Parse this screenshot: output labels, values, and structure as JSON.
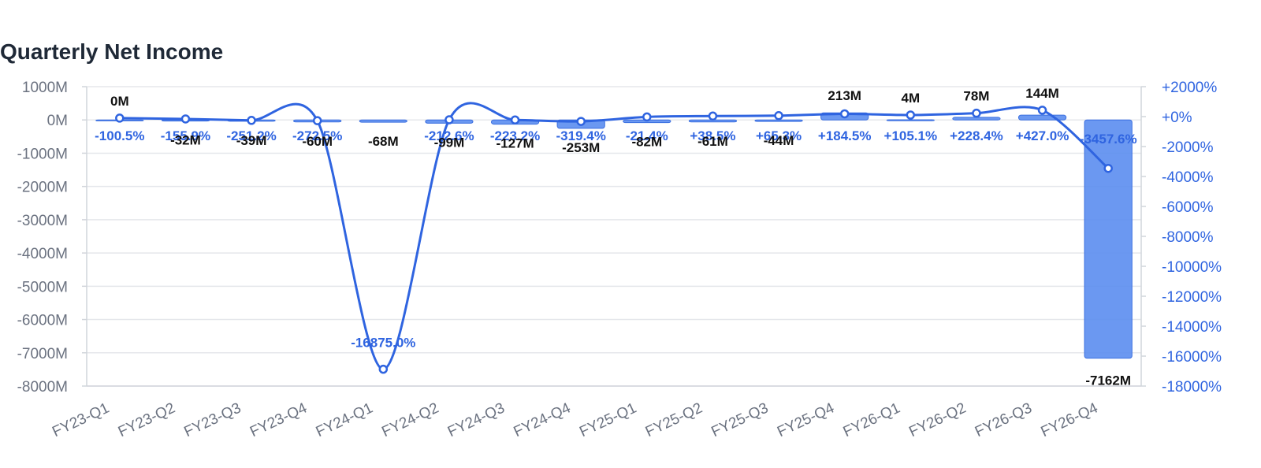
{
  "chart_data": {
    "type": "bar",
    "title": "Quarterly Net Income",
    "categories": [
      "FY23-Q1",
      "FY23-Q2",
      "FY23-Q3",
      "FY23-Q4",
      "FY24-Q1",
      "FY24-Q2",
      "FY24-Q3",
      "FY24-Q4",
      "FY25-Q1",
      "FY25-Q2",
      "FY25-Q3",
      "FY25-Q4",
      "FY26-Q1",
      "FY26-Q2",
      "FY26-Q3",
      "FY26-Q4"
    ],
    "series": [
      {
        "type": "bar",
        "axis": "left",
        "values": [
          0,
          -32,
          -39,
          -60,
          -68,
          -99,
          -127,
          -253,
          -82,
          -61,
          -44,
          213,
          4,
          78,
          144,
          -7162
        ],
        "value_labels": [
          "0M",
          "-32M",
          "-39M",
          "-60M",
          "-68M",
          "-99M",
          "-127M",
          "-253M",
          "-82M",
          "-61M",
          "-44M",
          "213M",
          "4M",
          "78M",
          "144M",
          "-7162M"
        ]
      },
      {
        "type": "line",
        "axis": "right",
        "values": [
          -100.5,
          -155.9,
          -251.2,
          -272.5,
          -16875.0,
          -212.6,
          -223.2,
          -319.4,
          -21.4,
          38.5,
          65.3,
          184.5,
          105.1,
          228.4,
          427.0,
          -3457.6
        ],
        "value_labels": [
          "-100.5%",
          "-155.9%",
          "-251.2%",
          "-272.5%",
          "-16875.0%",
          "-212.6%",
          "-223.2%",
          "-319.4%",
          "-21.4%",
          "+38.5%",
          "+65.3%",
          "+184.5%",
          "+105.1%",
          "+228.4%",
          "+427.0%",
          "-3457.6%"
        ]
      }
    ],
    "y_left": {
      "ylim": [
        -8000,
        1000
      ],
      "ticks": [
        1000,
        0,
        -1000,
        -2000,
        -3000,
        -4000,
        -5000,
        -6000,
        -7000,
        -8000
      ],
      "tick_labels": [
        "1000M",
        "0M",
        "-1000M",
        "-2000M",
        "-3000M",
        "-4000M",
        "-5000M",
        "-6000M",
        "-7000M",
        "-8000M"
      ]
    },
    "y_right": {
      "ylim": [
        -18000,
        2000
      ],
      "ticks": [
        2000,
        0,
        -2000,
        -4000,
        -6000,
        -8000,
        -10000,
        -12000,
        -14000,
        -16000,
        -18000
      ],
      "tick_labels": [
        "+2000%",
        "+0%",
        "-2000%",
        "-4000%",
        "-6000%",
        "-8000%",
        "-10000%",
        "-12000%",
        "-14000%",
        "-16000%",
        "-18000%"
      ]
    },
    "grid": true,
    "colors": {
      "bar_fill": "#5b8def",
      "bar_stroke": "#3b6fe0",
      "line": "#2f64e0",
      "right_axis_text": "#2f64e0",
      "left_axis_text": "#6b7280",
      "grid": "#e5e7eb",
      "bar_label": "#111111"
    }
  }
}
